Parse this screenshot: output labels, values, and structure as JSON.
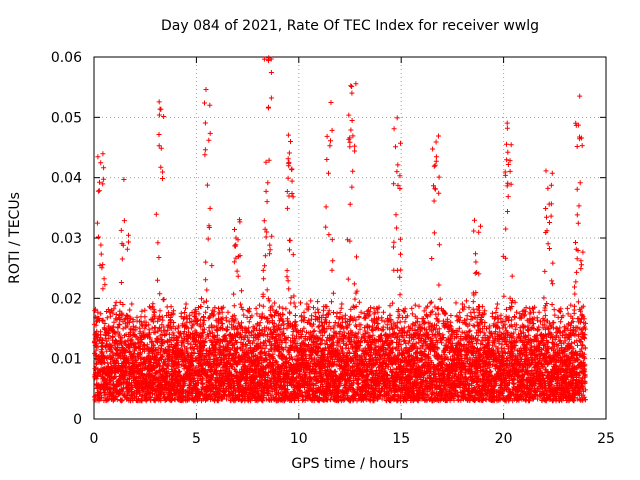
{
  "chart_data": {
    "type": "scatter",
    "title": "Day 084 of 2021, Rate Of TEC Index for receiver wwlg",
    "xlabel": "GPS time / hours",
    "ylabel": "ROTI / TECUs",
    "xlim": [
      0,
      25
    ],
    "ylim": [
      0,
      0.06
    ],
    "xticks": [
      "0",
      "5",
      "10",
      "15",
      "20",
      "25"
    ],
    "yticks": [
      "0",
      "0.01",
      "0.02",
      "0.03",
      "0.04",
      "0.05",
      "0.06"
    ],
    "grid": true,
    "marker": "+",
    "color": "#ff0000",
    "series": [
      {
        "name": "ROTI",
        "bursts": [
          {
            "t": 0.3,
            "peak": 0.045
          },
          {
            "t": 1.5,
            "peak": 0.04
          },
          {
            "t": 3.2,
            "peak": 0.056
          },
          {
            "t": 5.5,
            "peak": 0.055
          },
          {
            "t": 7.0,
            "peak": 0.035
          },
          {
            "t": 8.5,
            "peak": 0.06
          },
          {
            "t": 9.6,
            "peak": 0.048
          },
          {
            "t": 11.5,
            "peak": 0.055
          },
          {
            "t": 12.6,
            "peak": 0.056
          },
          {
            "t": 14.8,
            "peak": 0.05
          },
          {
            "t": 16.7,
            "peak": 0.048
          },
          {
            "t": 18.7,
            "peak": 0.033
          },
          {
            "t": 20.2,
            "peak": 0.05
          },
          {
            "t": 22.2,
            "peak": 0.042
          },
          {
            "t": 23.7,
            "peak": 0.054
          }
        ],
        "baseline_range": [
          0.003,
          0.02
        ],
        "sampling_interval_hours": 0.0083
      }
    ]
  }
}
